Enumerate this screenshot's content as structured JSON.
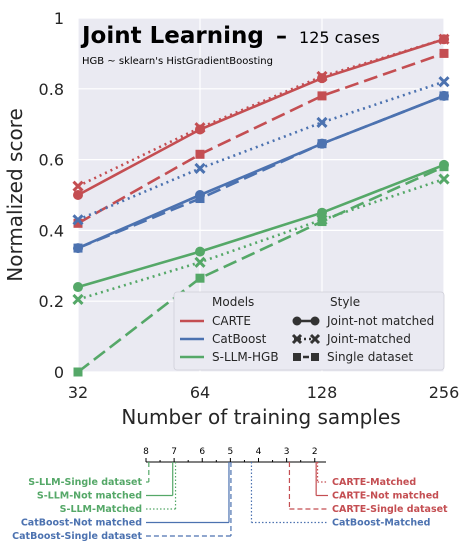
{
  "title": {
    "main": "Joint Learning",
    "dash": "–",
    "suffix": "125 cases",
    "note": "HGB ~ sklearn's HistGradientBoosting"
  },
  "colors": {
    "carte": "#c44e52",
    "catboost": "#4c72b0",
    "sllm": "#55a868",
    "background": "#eaeaf2",
    "grid": "#ffffff",
    "axis_text": "#262626"
  },
  "chart_data": [
    {
      "type": "line",
      "xlabel": "Number of training samples",
      "ylabel": "Normalized score",
      "x": [
        32,
        64,
        128,
        256
      ],
      "x_scale": "log2",
      "xlim": [
        32,
        256
      ],
      "ylim": [
        0,
        1
      ],
      "yticks": [
        0,
        0.2,
        0.4,
        0.6,
        0.8,
        1
      ],
      "ytick_labels": [
        "0",
        "0.2",
        "0.4",
        "0.6",
        "0.8",
        "1"
      ],
      "xtick_labels": [
        "32",
        "64",
        "128",
        "256"
      ],
      "grid": true,
      "legend": {
        "placement": "lower-right",
        "models_title": "Models",
        "style_title": "Style",
        "models": [
          {
            "name": "CARTE",
            "color_key": "carte"
          },
          {
            "name": "CatBoost",
            "color_key": "catboost"
          },
          {
            "name": "S-LLM-HGB",
            "color_key": "sllm"
          }
        ],
        "styles": [
          {
            "name": "Joint-not matched",
            "style": "solid",
            "marker": "circle"
          },
          {
            "name": "Joint-matched",
            "style": "dotted",
            "marker": "x"
          },
          {
            "name": "Single dataset",
            "style": "dashed",
            "marker": "square"
          }
        ]
      },
      "series": [
        {
          "model": "CARTE",
          "style": "solid",
          "values": [
            0.5,
            0.685,
            0.83,
            0.94
          ]
        },
        {
          "model": "CARTE",
          "style": "dotted",
          "values": [
            0.525,
            0.69,
            0.835,
            0.94
          ]
        },
        {
          "model": "CARTE",
          "style": "dashed",
          "values": [
            0.42,
            0.615,
            0.78,
            0.9
          ]
        },
        {
          "model": "CatBoost",
          "style": "solid",
          "values": [
            0.35,
            0.5,
            0.645,
            0.78
          ]
        },
        {
          "model": "CatBoost",
          "style": "dotted",
          "values": [
            0.43,
            0.575,
            0.705,
            0.82
          ]
        },
        {
          "model": "CatBoost",
          "style": "dashed",
          "values": [
            0.35,
            0.49,
            0.645,
            0.78
          ]
        },
        {
          "model": "S-LLM-HGB",
          "style": "solid",
          "values": [
            0.24,
            0.34,
            0.45,
            0.585
          ]
        },
        {
          "model": "S-LLM-HGB",
          "style": "dotted",
          "values": [
            0.205,
            0.31,
            0.43,
            0.545
          ]
        },
        {
          "model": "S-LLM-HGB",
          "style": "dashed",
          "values": [
            0.0,
            0.265,
            0.425,
            0.58
          ]
        }
      ]
    },
    {
      "type": "critical-difference",
      "axis_ticks": [
        8,
        7,
        6,
        5,
        4,
        3,
        2
      ],
      "axis_range": [
        8,
        1.6
      ],
      "left_items": [
        {
          "label": "S-LLM-Single dataset",
          "rank": 7.9,
          "color_key": "sllm",
          "style": "dashed"
        },
        {
          "label": "S-LLM-Not matched",
          "rank": 7.05,
          "color_key": "sllm",
          "style": "solid"
        },
        {
          "label": "S-LLM-Matched",
          "rank": 6.95,
          "color_key": "sllm",
          "style": "dotted"
        },
        {
          "label": "CatBoost-Not matched",
          "rank": 5.05,
          "color_key": "catboost",
          "style": "solid"
        },
        {
          "label": "CatBoost-Single dataset",
          "rank": 4.98,
          "color_key": "catboost",
          "style": "dashed"
        }
      ],
      "right_items": [
        {
          "label": "CARTE-Matched",
          "rank": 1.9,
          "color_key": "carte",
          "style": "dotted"
        },
        {
          "label": "CARTE-Not matched",
          "rank": 1.95,
          "color_key": "carte",
          "style": "solid"
        },
        {
          "label": "CARTE-Single dataset",
          "rank": 2.9,
          "color_key": "carte",
          "style": "dashed"
        },
        {
          "label": "CatBoost-Matched",
          "rank": 4.25,
          "color_key": "catboost",
          "style": "dotted"
        }
      ]
    }
  ]
}
